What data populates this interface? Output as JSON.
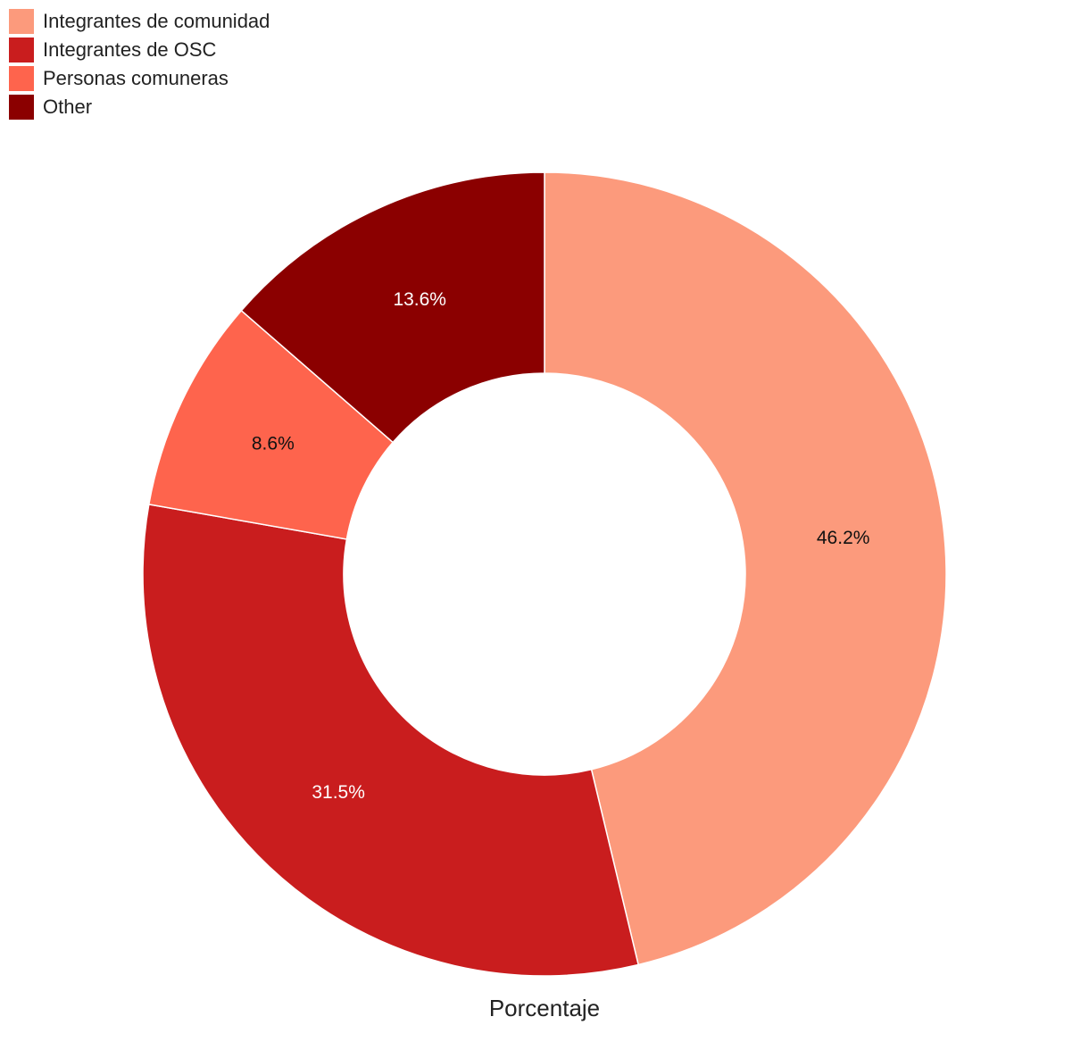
{
  "chart_data": {
    "type": "donut",
    "label": "Porcentaje",
    "categories": [
      "Integrantes de comunidad",
      "Integrantes de OSC",
      "Personas comuneras",
      "Other"
    ],
    "values": [
      46.2,
      31.5,
      8.6,
      13.6
    ],
    "value_labels": [
      "46.2%",
      "31.5%",
      "8.6%",
      "13.6%"
    ],
    "colors": [
      "#fc9a7c",
      "#c91d1e",
      "#fe644d",
      "#8b0000"
    ],
    "legend": "top-left"
  }
}
